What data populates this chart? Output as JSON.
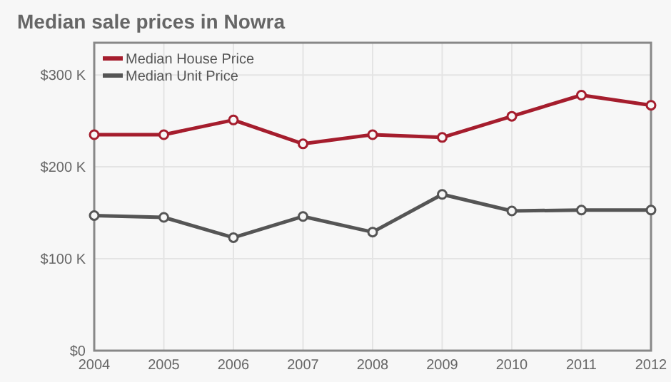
{
  "chart_data": {
    "type": "line",
    "title": "Median sale prices in Nowra",
    "x": [
      2004,
      2005,
      2006,
      2007,
      2008,
      2009,
      2010,
      2011,
      2012
    ],
    "xlim": [
      2004,
      2012
    ],
    "xticks": [
      2004,
      2005,
      2006,
      2007,
      2008,
      2009,
      2010,
      2011,
      2012
    ],
    "ylim": [
      0,
      335
    ],
    "yticks": [
      {
        "value": 0,
        "label": "$0"
      },
      {
        "value": 100,
        "label": "$100 K"
      },
      {
        "value": 200,
        "label": "$200 K"
      },
      {
        "value": 300,
        "label": "$300 K"
      }
    ],
    "series": [
      {
        "name": "Median House Price",
        "color": "#a51d2d",
        "values": [
          235,
          235,
          251,
          225,
          235,
          232,
          255,
          278,
          267
        ]
      },
      {
        "name": "Median Unit Price",
        "color": "#555555",
        "values": [
          147,
          145,
          123,
          146,
          129,
          170,
          152,
          153,
          153
        ]
      }
    ],
    "grid": true,
    "legend": "top left",
    "marker": "circle",
    "line_style": "solid"
  }
}
